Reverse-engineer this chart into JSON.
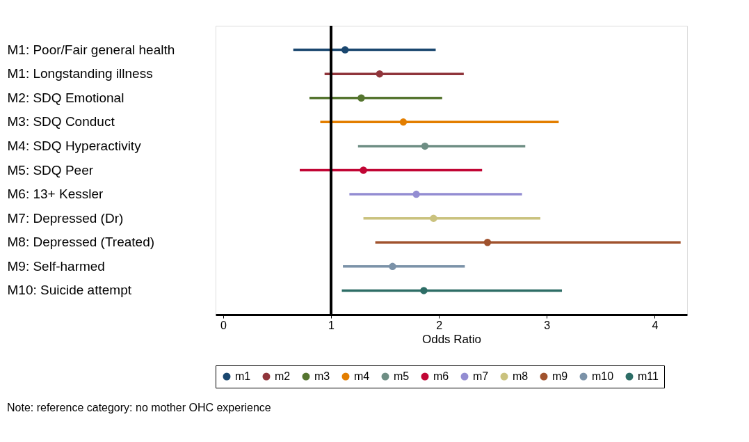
{
  "chart_data": {
    "type": "scatter",
    "orientation": "horizontal",
    "categories": [
      "M1: Poor/Fair general health",
      "M1: Longstanding illness",
      "M2: SDQ Emotional",
      "M3: SDQ Conduct",
      "M4: SDQ Hyperactivity",
      "M5: SDQ Peer",
      "M6: 13+ Kessler",
      "M7: Depressed (Dr)",
      "M8: Depressed (Treated)",
      "M9: Self-harmed",
      "M10: Suicide attempt"
    ],
    "series": [
      {
        "name": "m1",
        "color": "#1a476f",
        "values": [
          1.13,
          null,
          null,
          null,
          null,
          null,
          null,
          null,
          null,
          null,
          null
        ],
        "errors": [
          [
            0.65,
            1.97
          ],
          null,
          null,
          null,
          null,
          null,
          null,
          null,
          null,
          null,
          null
        ]
      },
      {
        "name": "m2",
        "color": "#90353b",
        "values": [
          null,
          1.45,
          null,
          null,
          null,
          null,
          null,
          null,
          null,
          null,
          null
        ],
        "errors": [
          null,
          [
            0.94,
            2.23
          ],
          null,
          null,
          null,
          null,
          null,
          null,
          null,
          null,
          null
        ]
      },
      {
        "name": "m3",
        "color": "#55752f",
        "values": [
          null,
          null,
          1.28,
          null,
          null,
          null,
          null,
          null,
          null,
          null,
          null
        ],
        "errors": [
          null,
          null,
          [
            0.8,
            2.03
          ],
          null,
          null,
          null,
          null,
          null,
          null,
          null,
          null
        ]
      },
      {
        "name": "m4",
        "color": "#e37e00",
        "values": [
          null,
          null,
          null,
          1.67,
          null,
          null,
          null,
          null,
          null,
          null,
          null
        ],
        "errors": [
          null,
          null,
          null,
          [
            0.9,
            3.11
          ],
          null,
          null,
          null,
          null,
          null,
          null,
          null
        ]
      },
      {
        "name": "m5",
        "color": "#6e8e84",
        "values": [
          null,
          null,
          null,
          null,
          1.87,
          null,
          null,
          null,
          null,
          null,
          null
        ],
        "errors": [
          null,
          null,
          null,
          null,
          [
            1.25,
            2.8
          ],
          null,
          null,
          null,
          null,
          null,
          null
        ]
      },
      {
        "name": "m6",
        "color": "#c10534",
        "values": [
          null,
          null,
          null,
          null,
          null,
          1.3,
          null,
          null,
          null,
          null,
          null
        ],
        "errors": [
          null,
          null,
          null,
          null,
          null,
          [
            0.71,
            2.4
          ],
          null,
          null,
          null,
          null,
          null
        ]
      },
      {
        "name": "m7",
        "color": "#938dd2",
        "values": [
          null,
          null,
          null,
          null,
          null,
          null,
          1.79,
          null,
          null,
          null,
          null
        ],
        "errors": [
          null,
          null,
          null,
          null,
          null,
          null,
          [
            1.17,
            2.77
          ],
          null,
          null,
          null,
          null
        ]
      },
      {
        "name": "m8",
        "color": "#cac27e",
        "values": [
          null,
          null,
          null,
          null,
          null,
          null,
          null,
          1.95,
          null,
          null,
          null
        ],
        "errors": [
          null,
          null,
          null,
          null,
          null,
          null,
          null,
          [
            1.3,
            2.94
          ],
          null,
          null,
          null
        ]
      },
      {
        "name": "m9",
        "color": "#a0522d",
        "values": [
          null,
          null,
          null,
          null,
          null,
          null,
          null,
          null,
          2.45,
          null,
          null
        ],
        "errors": [
          null,
          null,
          null,
          null,
          null,
          null,
          null,
          null,
          [
            1.41,
            4.24
          ],
          null,
          null
        ]
      },
      {
        "name": "m10",
        "color": "#7b92a8",
        "values": [
          null,
          null,
          null,
          null,
          null,
          null,
          null,
          null,
          null,
          1.57,
          null
        ],
        "errors": [
          null,
          null,
          null,
          null,
          null,
          null,
          null,
          null,
          null,
          [
            1.11,
            2.24
          ],
          null
        ]
      },
      {
        "name": "m11",
        "color": "#2d6d66",
        "values": [
          null,
          null,
          null,
          null,
          null,
          null,
          null,
          null,
          null,
          null,
          1.86
        ],
        "errors": [
          null,
          null,
          null,
          null,
          null,
          null,
          null,
          null,
          null,
          null,
          [
            1.1,
            3.14
          ]
        ]
      }
    ],
    "xlabel": "Odds Ratio",
    "xlim": [
      -0.07,
      4.3
    ],
    "xticks": [
      0,
      1,
      2,
      3,
      4
    ],
    "ref_lines": [
      {
        "axis": "x",
        "value": 1,
        "color": "#000000"
      }
    ],
    "marker": "circle",
    "grid": false,
    "legend": "bottom",
    "annotations": [
      "Note: reference category: no mother OHC experience"
    ]
  }
}
